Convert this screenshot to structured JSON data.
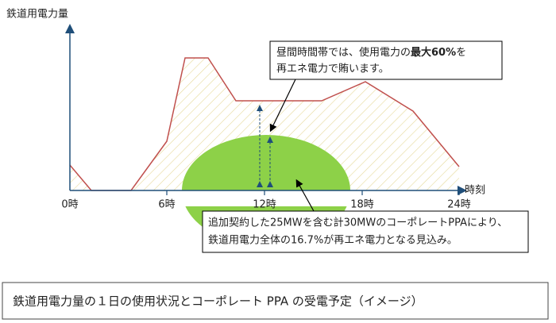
{
  "y_axis_label": "鉄道用電力量",
  "x_axis_label": "時刻",
  "x_ticks": [
    "0時",
    "6時",
    "12時",
    "18時",
    "24時"
  ],
  "callout_top": {
    "line1": [
      "昼間時間帯では、使用電力の",
      "最大60%",
      "を"
    ],
    "line2": "再エネ電力で賄います。"
  },
  "callout_bottom": {
    "line1": "追加契約した25MWを含む計30MWのコーポレートPPAにより、",
    "line2": "鉄道用電力全体の16.7%が再エネ電力となる見込み。"
  },
  "caption": "鉄道用電力量の１日の使用状況とコーポレート PPA の受電予定（イメージ）"
}
